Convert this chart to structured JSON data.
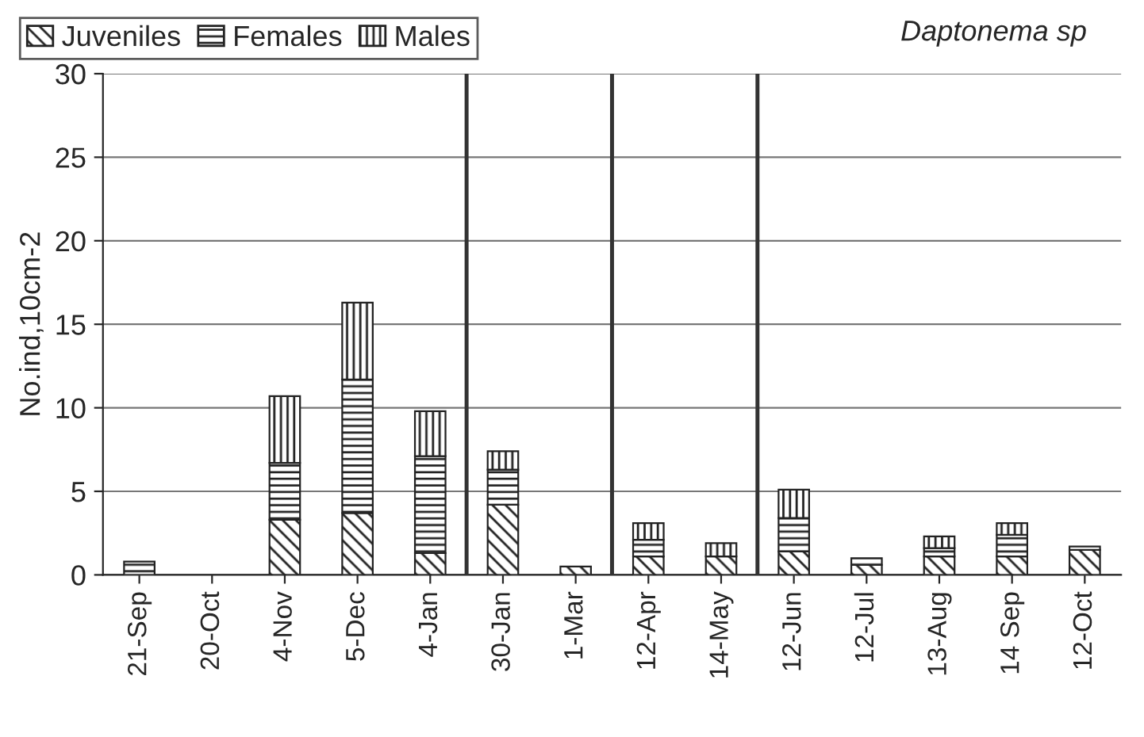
{
  "chart_data": {
    "type": "bar",
    "stacked": true,
    "title": "Daptonema sp",
    "ylabel": "No.ind,10cm-2",
    "categories": [
      "21-Sep",
      "20-Oct",
      "4-Nov",
      "5-Dec",
      "4-Jan",
      "30-Jan",
      "1-Mar",
      "12-Apr",
      "14-May",
      "12-Jun",
      "12-Jul",
      "13-Aug",
      "14 Sep",
      "12-Oct"
    ],
    "series": [
      {
        "name": "Juveniles",
        "color": "#222222",
        "values": [
          null,
          null,
          3.3,
          3.7,
          1.3,
          4.2,
          0.5,
          1.1,
          1.1,
          1.4,
          0.6,
          1.1,
          1.1,
          1.5
        ]
      },
      {
        "name": "Females",
        "color": "#222222",
        "values": [
          0.8,
          null,
          3.4,
          8.0,
          5.8,
          2.1,
          null,
          1.0,
          null,
          2.0,
          0.4,
          0.5,
          1.3,
          0.2
        ]
      },
      {
        "name": "Males",
        "color": "#222222",
        "values": [
          null,
          null,
          4.0,
          4.6,
          2.7,
          1.1,
          null,
          1.0,
          0.8,
          1.7,
          null,
          0.7,
          0.7,
          null
        ]
      }
    ],
    "ylim": [
      0,
      30
    ],
    "yticks": [
      0,
      5,
      10,
      15,
      20,
      25,
      30
    ],
    "grid": "y",
    "legend": "top left"
  }
}
